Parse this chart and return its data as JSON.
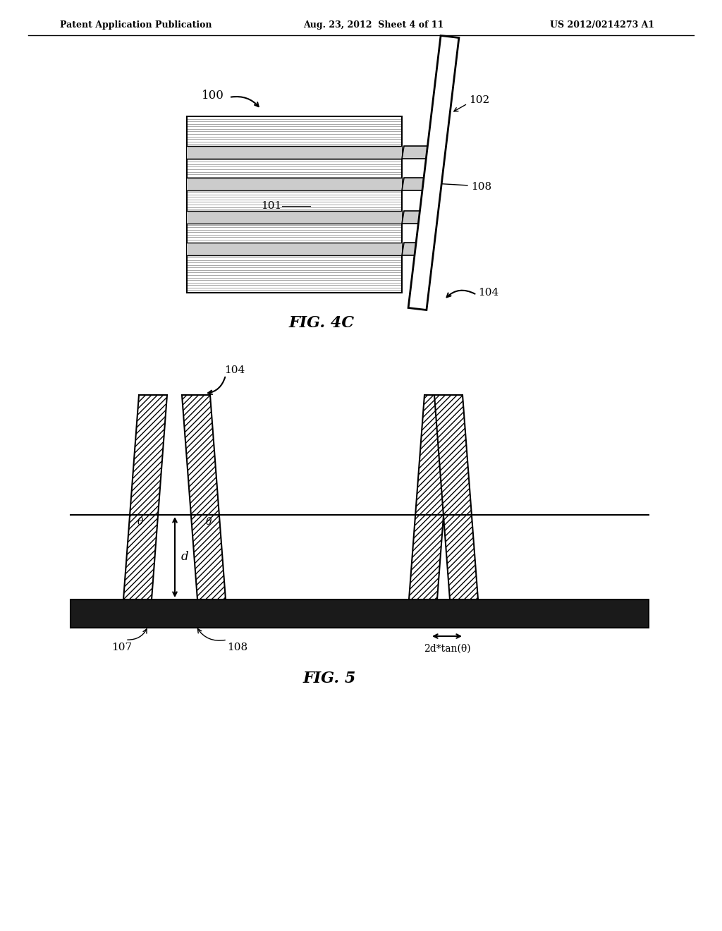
{
  "header_left": "Patent Application Publication",
  "header_mid": "Aug. 23, 2012  Sheet 4 of 11",
  "header_right": "US 2012/0214273 A1",
  "fig4c_label": "FIG. 4C",
  "fig5_label": "FIG. 5",
  "label_100": "100",
  "label_101": "101",
  "label_102": "102",
  "label_104_4c": "104",
  "label_108_4c": "108",
  "label_104_5": "104",
  "label_107": "107",
  "label_108_5": "108",
  "label_d": "d",
  "label_theta1": "θ",
  "label_theta2": "θ",
  "label_2dtan": "2d*tan(θ)",
  "bg_color": "#ffffff",
  "line_color": "#000000",
  "substrate_color": "#1a1a1a"
}
